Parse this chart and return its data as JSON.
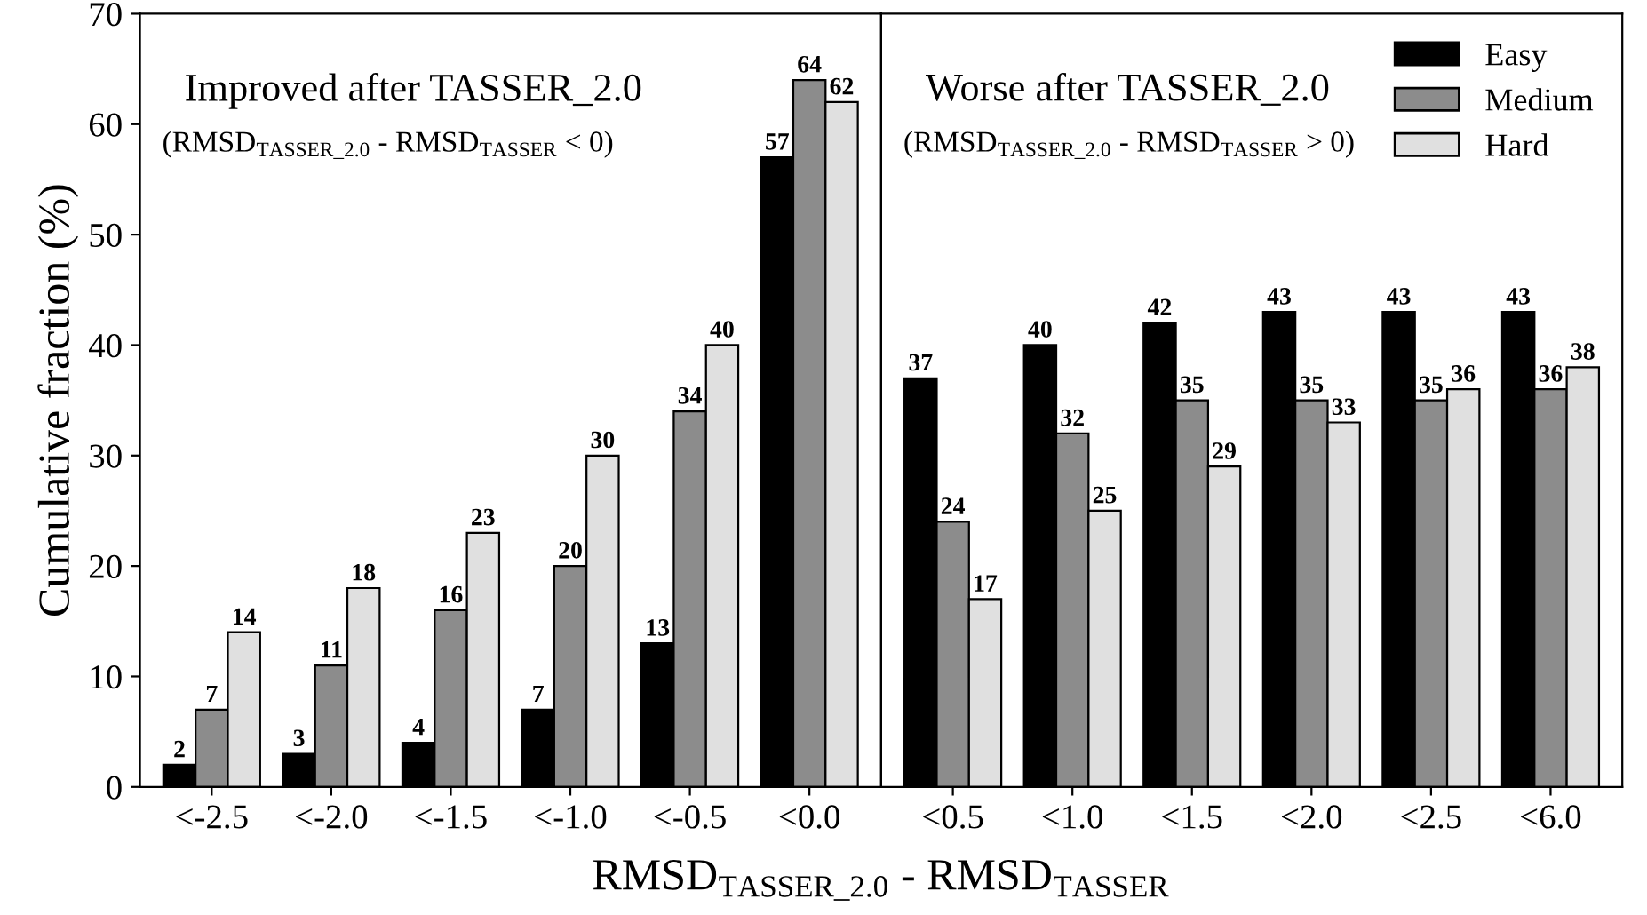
{
  "chart_data": [
    {
      "type": "bar",
      "categories": [
        "<-2.5",
        "<-2.0",
        "<-1.5",
        "<-1.0",
        "<-0.5",
        "<0.0"
      ],
      "series": [
        {
          "color": "#000000",
          "values": [
            2,
            3,
            4,
            7,
            13,
            57
          ]
        },
        {
          "color": "#8c8c8c",
          "values": [
            7,
            11,
            16,
            20,
            34,
            64
          ]
        },
        {
          "color": "#e0e0e0",
          "values": [
            14,
            18,
            23,
            30,
            40,
            62
          ]
        }
      ],
      "ylabel": "Cumulative fraction (%)",
      "xlabel": "RMSD$_{TASSER_2.0}$ - RMSD$_{TASSER}$",
      "annotations": [
        "Improved after TASSER_2.0",
        "(RMSD$_{TASSER_2.0}$ - RMSD$_{TASSER}$ < 0)"
      ],
      "ylim": [
        0,
        70
      ],
      "yticks": [
        0,
        10,
        20,
        30,
        40,
        50,
        60,
        70
      ],
      "data_labels": true,
      "grid": false,
      "legend": false
    },
    {
      "type": "bar",
      "categories": [
        "<0.5",
        "<1.0",
        "<1.5",
        "<2.0",
        "<2.5",
        "<6.0"
      ],
      "series": [
        {
          "name": "Easy",
          "color": "#000000",
          "values": [
            37,
            40,
            42,
            43,
            43,
            43
          ]
        },
        {
          "name": "Medium",
          "color": "#8c8c8c",
          "values": [
            24,
            32,
            35,
            35,
            35,
            36
          ]
        },
        {
          "name": "Hard",
          "color": "#e0e0e0",
          "values": [
            17,
            25,
            29,
            33,
            36,
            38
          ]
        }
      ],
      "annotations": [
        "Worse after TASSER_2.0",
        "(RMSD$_{TASSER_2.0}$ - RMSD$_{TASSER}$ > 0)"
      ],
      "ylim": [
        0,
        70
      ],
      "yticks": [
        0,
        10,
        20,
        30,
        40,
        50,
        60,
        70
      ],
      "tick_labels": "x",
      "data_labels": true,
      "grid": false,
      "legend": "top right"
    }
  ]
}
